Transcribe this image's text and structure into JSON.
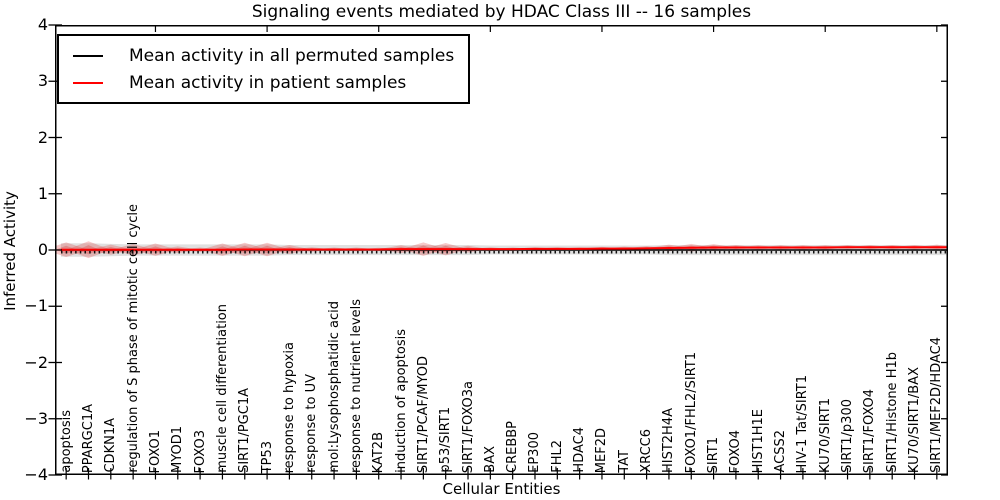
{
  "figure": {
    "title": "Signaling events mediated by HDAC Class III -- 16 samples"
  },
  "chart_data": {
    "type": "violin+line",
    "title": "Signaling events mediated by HDAC Class III -- 16 samples",
    "xlabel": "Cellular Entities",
    "ylabel": "Inferred Activity",
    "ylim": [
      -4,
      4
    ],
    "ytick_values": [
      4,
      3,
      2,
      1,
      0,
      -1,
      -2,
      -3,
      -4
    ],
    "ytick_labels": [
      "4",
      "3",
      "2",
      "1",
      "0",
      "−1",
      "−2",
      "−3",
      "−4"
    ],
    "grid": false,
    "legend": {
      "position": "upper left",
      "entries": [
        {
          "label": "Mean activity in all permuted samples",
          "color": "#000000"
        },
        {
          "label": "Mean activity in patient samples",
          "color": "#ff0000"
        }
      ]
    },
    "categories": [
      "apoptosis",
      "PPARGC1A",
      "CDKN1A",
      "regulation of S phase of mitotic cell cycle",
      "FOXO1",
      "MYOD1",
      "FOXO3",
      "muscle cell differentiation",
      "SIRT1/PGC1A",
      "TP53",
      "response to hypoxia",
      "response to UV",
      "mol:Lysophosphatidic acid",
      "response to nutrient levels",
      "KAT2B",
      "induction of apoptosis",
      "SIRT1/PCAF/MYOD",
      "p53/SIRT1",
      "SIRT1/FOXO3a",
      "BAX",
      "CREBBP",
      "EP300",
      "FHL2",
      "HDAC4",
      "MEF2D",
      "TAT",
      "XRCC6",
      "HIST2H4A",
      "FOXO1/FHL2/SIRT1",
      "SIRT1",
      "FOXO4",
      "HIST1H1E",
      "ACSS2",
      "HIV-1 Tat/SIRT1",
      "KU70/SIRT1",
      "SIRT1/p300",
      "SIRT1/FOXO4",
      "SIRT1/Histone H1b",
      "KU70/SIRT1/BAX",
      "SIRT1/MEF2D/HDAC4"
    ],
    "series": [
      {
        "name": "Mean activity in all permuted samples",
        "color": "#000000",
        "style": "solid with dense plus markers",
        "values": [
          0,
          0,
          0,
          0,
          0,
          0,
          0,
          0,
          0,
          0,
          0,
          0,
          0,
          0,
          0,
          0,
          0,
          0,
          0,
          0,
          0,
          0,
          0,
          0,
          0,
          0,
          0,
          0,
          0,
          0,
          0,
          0,
          0,
          0,
          0,
          0,
          0,
          0,
          0,
          0
        ]
      },
      {
        "name": "Mean activity in patient samples",
        "color": "#ff0000",
        "style": "solid",
        "values": [
          0.005,
          0.005,
          0.005,
          0.005,
          0.005,
          0.005,
          0.005,
          0.005,
          0.01,
          0.01,
          0.01,
          0.01,
          0.01,
          0.01,
          0.01,
          0.015,
          0.015,
          0.015,
          0.015,
          0.015,
          0.015,
          0.02,
          0.02,
          0.02,
          0.025,
          0.025,
          0.03,
          0.035,
          0.04,
          0.045,
          0.045,
          0.045,
          0.045,
          0.045,
          0.045,
          0.05,
          0.05,
          0.05,
          0.05,
          0.05
        ]
      }
    ],
    "patient_violin_halfheights": [
      0.13,
      0.15,
      0.09,
      0.1,
      0.11,
      0.06,
      0.04,
      0.11,
      0.12,
      0.12,
      0.08,
      0.04,
      0.035,
      0.035,
      0.03,
      0.07,
      0.12,
      0.11,
      0.06,
      0.035,
      0.03,
      0.03,
      0.03,
      0.03,
      0.03,
      0.035,
      0.04,
      0.06,
      0.07,
      0.06,
      0.045,
      0.04,
      0.04,
      0.04,
      0.04,
      0.04,
      0.04,
      0.04,
      0.04,
      0.045
    ],
    "permuted_band_halfheights": [
      0.12,
      0.12,
      0.11,
      0.1,
      0.1,
      0.1,
      0.1,
      0.1,
      0.1,
      0.1,
      0.09,
      0.09,
      0.09,
      0.09,
      0.09,
      0.09,
      0.09,
      0.09,
      0.09,
      0.08,
      0.08,
      0.08,
      0.08,
      0.08,
      0.08,
      0.08,
      0.08,
      0.09,
      0.09,
      0.09,
      0.09,
      0.09,
      0.09,
      0.09,
      0.09,
      0.09,
      0.09,
      0.09,
      0.09,
      0.09
    ],
    "colors": {
      "patient_fill": "#dd2c2c",
      "permuted_fill": "#bbbbbb",
      "frame": "#000000"
    }
  }
}
